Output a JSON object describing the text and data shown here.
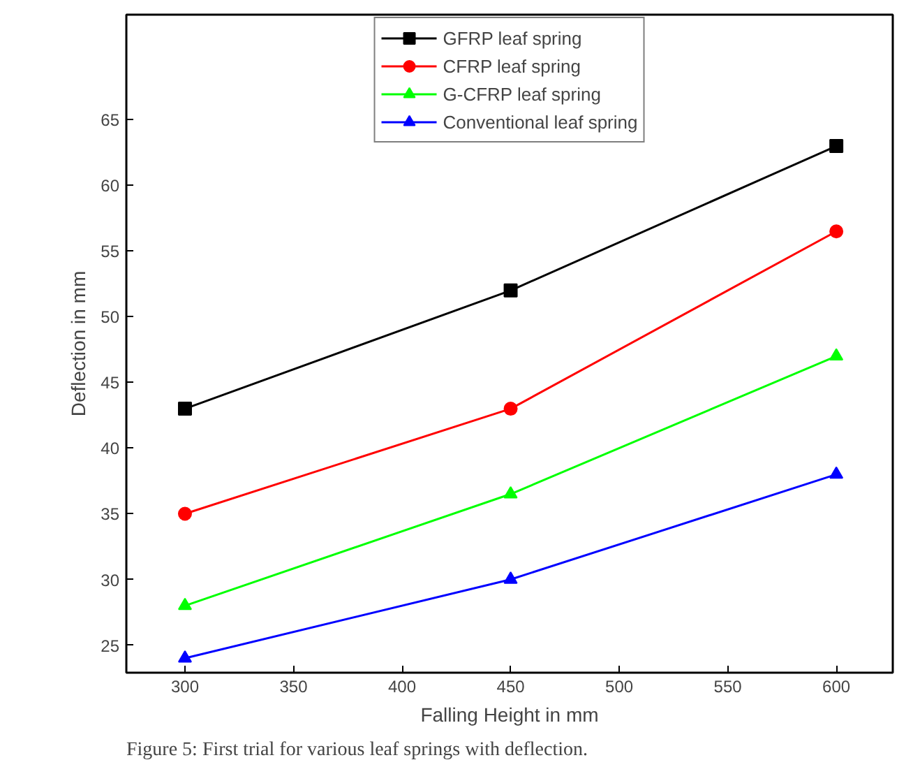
{
  "chart_data": {
    "type": "line",
    "xlabel": "Falling Height in mm",
    "ylabel": "Deflection in mm",
    "x": [
      300,
      450,
      600
    ],
    "series": [
      {
        "name": "GFRP leaf spring",
        "color": "#000000",
        "marker": "square",
        "values": [
          43,
          52,
          63
        ]
      },
      {
        "name": "CFRP leaf spring",
        "color": "#ff0000",
        "marker": "circle",
        "values": [
          35,
          43,
          56.5
        ]
      },
      {
        "name": "G-CFRP leaf spring",
        "color": "#00ff00",
        "marker": "triangle",
        "values": [
          28,
          36.5,
          47
        ]
      },
      {
        "name": "Conventional leaf spring",
        "color": "#0000ff",
        "marker": "triangle",
        "values": [
          24,
          30,
          38
        ]
      }
    ],
    "xlim": [
      273,
      626
    ],
    "ylim": [
      22.9,
      73
    ],
    "xticks": [
      300,
      350,
      400,
      450,
      500,
      550,
      600
    ],
    "yticks": [
      25,
      30,
      35,
      40,
      45,
      50,
      55,
      60,
      65
    ],
    "grid": false,
    "legend": "top",
    "line_style": "solid",
    "annotations": [
      "Figure 5: First trial for various leaf springs with deflection."
    ]
  }
}
